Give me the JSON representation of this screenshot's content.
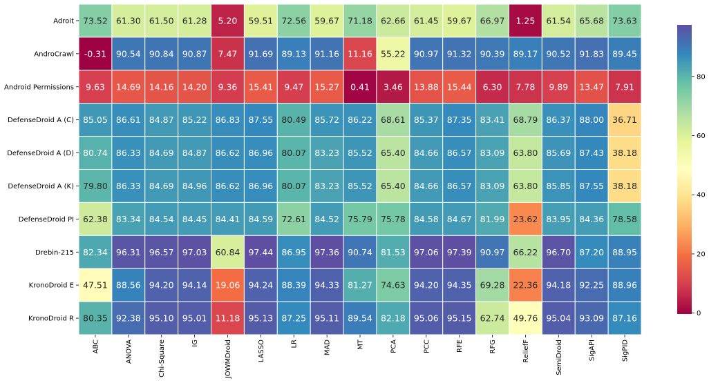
{
  "chart_data": {
    "type": "heatmap",
    "title": "",
    "xlabel": "",
    "ylabel": "",
    "rows": [
      "Adroit",
      "AndroCrawl",
      "Android Permissions",
      "DefenseDroid A (C)",
      "DefenseDroid A (D)",
      "DefenseDroid A (K)",
      "DefenseDroid PI",
      "Drebin-215",
      "KronoDroid E",
      "KronoDroid R"
    ],
    "columns": [
      "ABC",
      "ANOVA",
      "Chi-Square",
      "IG",
      "JOWMDroid",
      "LASSO",
      "LR",
      "MAD",
      "MT",
      "PCA",
      "PCC",
      "RFE",
      "RFG",
      "ReliefF",
      "SemiDroid",
      "SigAPI",
      "SigPID"
    ],
    "values": [
      [
        73.52,
        61.3,
        61.5,
        61.28,
        5.2,
        59.51,
        72.56,
        59.67,
        71.18,
        62.66,
        61.45,
        59.67,
        66.97,
        1.25,
        61.54,
        65.68,
        73.63
      ],
      [
        -0.31,
        90.54,
        90.84,
        90.87,
        7.47,
        91.69,
        89.13,
        91.16,
        11.16,
        55.22,
        90.97,
        91.32,
        90.39,
        89.17,
        90.52,
        91.83,
        89.45
      ],
      [
        9.63,
        14.69,
        14.16,
        14.2,
        9.36,
        15.41,
        9.47,
        15.27,
        0.41,
        3.46,
        13.88,
        15.44,
        6.3,
        7.78,
        9.89,
        13.47,
        7.91
      ],
      [
        85.05,
        86.61,
        84.87,
        85.22,
        86.83,
        87.55,
        80.49,
        85.72,
        86.22,
        68.61,
        85.37,
        87.35,
        83.41,
        68.79,
        86.37,
        88.0,
        36.71
      ],
      [
        80.74,
        86.33,
        84.69,
        84.87,
        86.62,
        86.96,
        80.07,
        83.23,
        85.52,
        65.4,
        84.66,
        86.57,
        83.09,
        63.8,
        85.69,
        87.43,
        38.18
      ],
      [
        79.8,
        86.33,
        84.69,
        84.96,
        86.62,
        86.96,
        80.07,
        83.23,
        85.52,
        65.4,
        84.66,
        86.57,
        83.09,
        63.8,
        85.85,
        87.55,
        38.18
      ],
      [
        62.38,
        83.34,
        84.54,
        84.45,
        84.41,
        84.59,
        72.61,
        84.52,
        75.79,
        75.78,
        84.58,
        84.67,
        81.99,
        23.62,
        83.95,
        84.36,
        78.58
      ],
      [
        82.34,
        96.31,
        96.57,
        97.03,
        60.84,
        97.44,
        86.95,
        97.36,
        90.74,
        81.53,
        97.06,
        97.39,
        90.97,
        66.22,
        96.7,
        87.2,
        88.95
      ],
      [
        47.51,
        88.56,
        94.2,
        94.14,
        19.06,
        94.24,
        88.39,
        94.33,
        81.27,
        74.63,
        94.2,
        94.35,
        69.28,
        22.36,
        94.18,
        92.25,
        88.96
      ],
      [
        80.35,
        92.38,
        95.1,
        95.01,
        11.18,
        95.13,
        87.25,
        95.11,
        89.54,
        82.18,
        95.06,
        95.15,
        62.74,
        49.76,
        95.04,
        93.09,
        87.16
      ]
    ],
    "colormap": "Spectral",
    "vmin": -0.31,
    "vmax": 97.44,
    "colorbar_ticks": [
      "0",
      "20",
      "40",
      "60",
      "80"
    ],
    "grid": false,
    "legend": "colorbar-right"
  }
}
